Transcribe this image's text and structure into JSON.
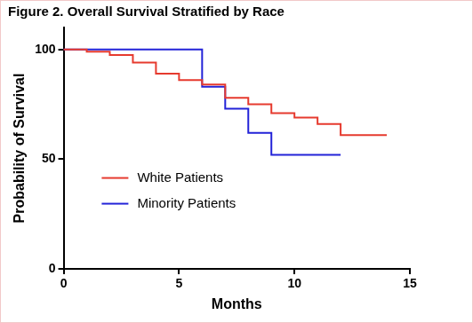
{
  "chart_data": {
    "type": "line",
    "title": "Figure 2. Overall Survival Stratified by Race",
    "x_label": "Months",
    "y_label": "Probability of Survival",
    "xlim": [
      0,
      15
    ],
    "xticks": [
      0,
      5,
      10,
      15
    ],
    "ylim": [
      0,
      110
    ],
    "yticks": [
      0,
      50,
      100
    ],
    "grid": false,
    "legend": "lower left",
    "line_style": "step",
    "marker": "none",
    "series": [
      {
        "name": "White Patients",
        "color": "#e63a2e",
        "x": [
          0,
          1,
          2,
          3,
          4,
          5,
          6,
          7,
          8,
          9,
          10,
          11,
          12,
          14
        ],
        "values": [
          100,
          99,
          97.5,
          94,
          89,
          86,
          84,
          78,
          75,
          71,
          69,
          66,
          61,
          61
        ]
      },
      {
        "name": "Minority Patients",
        "color": "#2323d8",
        "x": [
          0,
          6,
          7,
          8,
          9,
          12
        ],
        "values": [
          100,
          83,
          73,
          62,
          52,
          52
        ]
      }
    ]
  }
}
